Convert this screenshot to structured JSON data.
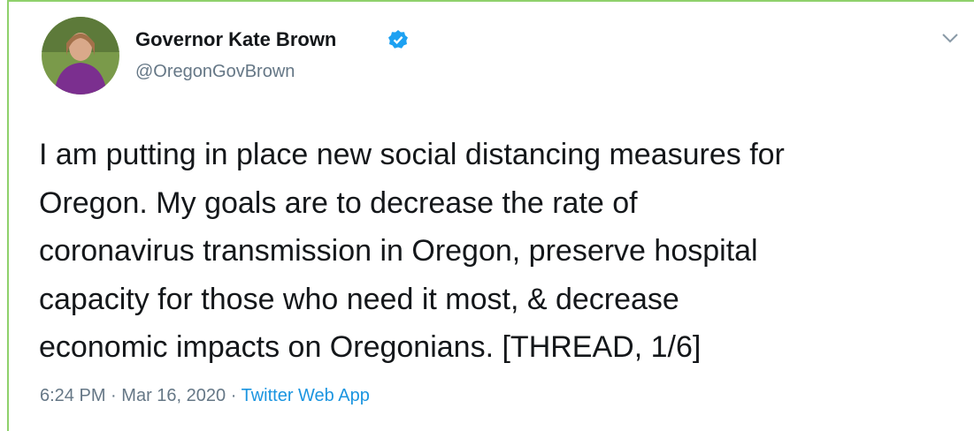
{
  "author": {
    "name": "Governor Kate Brown",
    "handle": "@OregonGovBrown"
  },
  "tweet": {
    "lines": [
      "I am putting in place new social distancing measures for",
      "Oregon. My goals are to decrease the rate of",
      "coronavirus transmission in Oregon, preserve hospital",
      "capacity for those who need it most, & decrease",
      "economic impacts on Oregonians. [THREAD, 1/6]"
    ]
  },
  "meta": {
    "time": "6:24 PM",
    "separator": "·",
    "date": "Mar 16, 2020",
    "source": "Twitter Web App"
  }
}
